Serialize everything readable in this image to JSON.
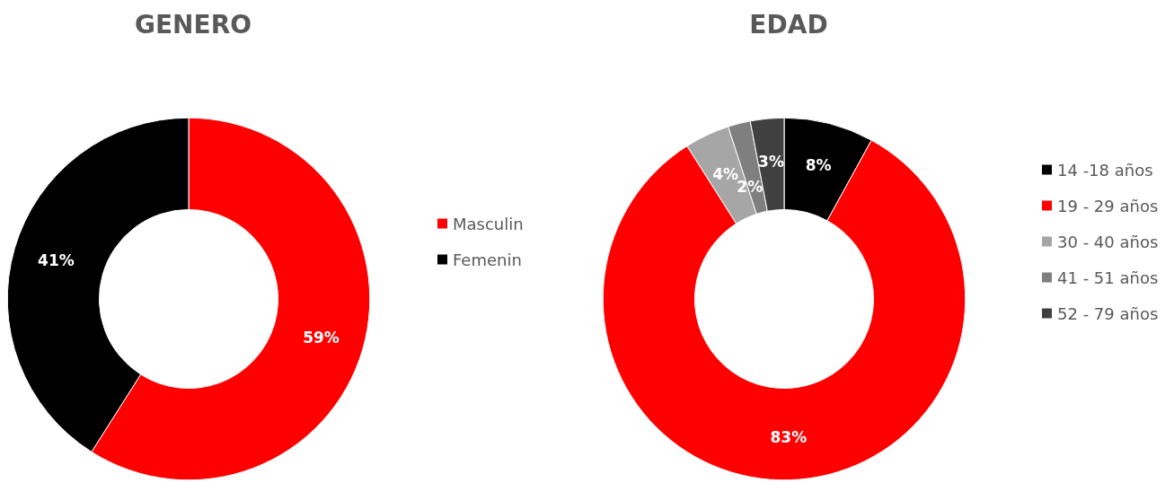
{
  "chart_data": [
    {
      "type": "donut",
      "title": "GENERO",
      "categories": [
        "Masculin",
        "Femenin"
      ],
      "values": [
        59,
        41
      ],
      "colors": [
        "#ff0000",
        "#000000"
      ],
      "value_labels": [
        "59%",
        "41%"
      ],
      "legend": "right"
    },
    {
      "type": "donut",
      "title": "EDAD",
      "categories": [
        "14 -18 años",
        "19 - 29 años",
        "30 - 40 años",
        "41 - 51 años",
        "52 - 79 años"
      ],
      "values": [
        8,
        83,
        4,
        2,
        3
      ],
      "colors": [
        "#000000",
        "#ff0000",
        "#a6a6a6",
        "#7f7f7f",
        "#404040"
      ],
      "value_labels": [
        "8%",
        "83%",
        "4%",
        "2%",
        "3%"
      ],
      "legend": "right"
    }
  ]
}
